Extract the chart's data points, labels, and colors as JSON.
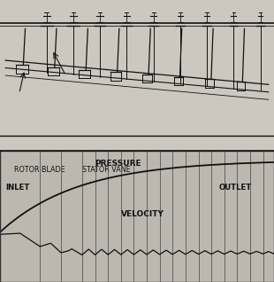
{
  "fig_width": 3.1,
  "fig_height": 3.18,
  "dpi": 100,
  "label_rotor": "ROTOR BLADE",
  "label_stator": "STATOR VANE",
  "label_inlet": "INLET",
  "label_outlet": "OUTLET",
  "label_pressure": "PRESSURE",
  "label_velocity": "VELOCITY",
  "line_color": "#111111",
  "font_family": "sans-serif",
  "bg_color": "#bcb8b0",
  "top_bg": "#c8c4bc",
  "bot_bg": "#e8e4de"
}
